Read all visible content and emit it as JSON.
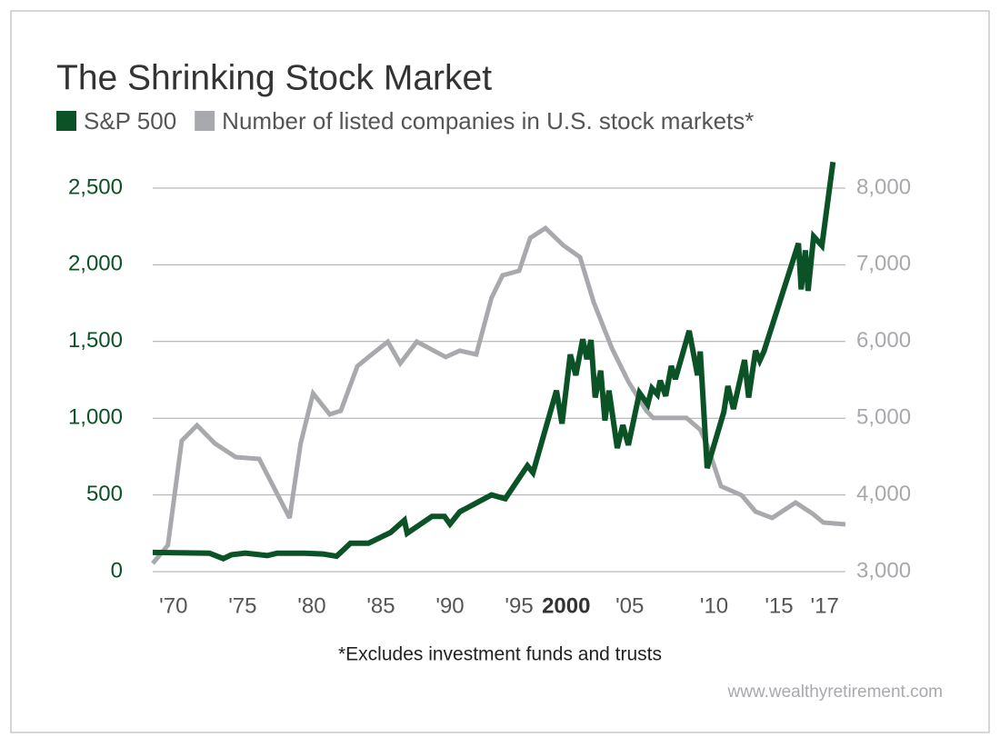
{
  "chart_data": {
    "type": "line",
    "title": "The Shrinking Stock Market",
    "footnote": "*Excludes investment funds and trusts",
    "source": "www.wealthyretirement.com",
    "xlim": [
      1968.5,
      2018.6
    ],
    "xticks": [
      {
        "value": 1970,
        "label": "'70"
      },
      {
        "value": 1975,
        "label": "'75"
      },
      {
        "value": 1980,
        "label": "'80"
      },
      {
        "value": 1985,
        "label": "'85"
      },
      {
        "value": 1990,
        "label": "'90"
      },
      {
        "value": 1995,
        "label": "'95"
      },
      {
        "value": 1998.4,
        "label": "2000"
      },
      {
        "value": 2003,
        "label": "'05"
      },
      {
        "value": 2009.1,
        "label": "'10"
      },
      {
        "value": 2013.8,
        "label": "'15"
      },
      {
        "value": 2017.1,
        "label": "'17"
      }
    ],
    "ylim": [
      0,
      2500
    ],
    "yticks": [
      0,
      500,
      {
        "value": 1000,
        "label": "1,000"
      },
      {
        "value": 1500,
        "label": "1,500"
      },
      {
        "value": 2000,
        "label": "2,000"
      },
      {
        "value": 2500,
        "label": "2,500"
      }
    ],
    "y2lim": [
      3000,
      8000
    ],
    "y2ticks": [
      {
        "value": 3000,
        "label": "3,000"
      },
      {
        "value": 4000,
        "label": "4,000"
      },
      {
        "value": 5000,
        "label": "5,000"
      },
      {
        "value": 6000,
        "label": "6,000"
      },
      {
        "value": 7000,
        "label": "7,000"
      },
      {
        "value": 8000,
        "label": "8,000"
      }
    ],
    "grid": true,
    "series": [
      {
        "name": "S&P 500",
        "color": "#0b5226",
        "axis": "y",
        "x": [
          1968.5,
          1972.6,
          1973.6,
          1974.2,
          1975.2,
          1976.8,
          1977.5,
          1979.5,
          1980.8,
          1981.8,
          1982.8,
          1984.1,
          1985.7,
          1986.7,
          1986.9,
          1988.7,
          1989.6,
          1990,
          1990.7,
          1993,
          1994,
          1995.6,
          1996,
          1997.7,
          1998.1,
          1998.7,
          1999.1,
          1999.6,
          1999.9,
          2000.2,
          2000.5,
          2000.9,
          2001.2,
          2001.5,
          2002.1,
          2002.5,
          2002.9,
          2003.7,
          2004.3,
          2004.6,
          2005,
          2005.2,
          2005.6,
          2006,
          2006.3,
          2007.3,
          2007.9,
          2008.1,
          2008.6,
          2009.8,
          2010.1,
          2010.5,
          2011.3,
          2011.6,
          2012.1,
          2012.4,
          2012.7,
          2015.2,
          2015.4,
          2015.7,
          2015.9,
          2016.3,
          2016.9,
          2017.7
        ],
        "values": [
          125,
          120,
          85,
          110,
          120,
          105,
          120,
          120,
          115,
          100,
          185,
          185,
          255,
          335,
          250,
          360,
          360,
          310,
          390,
          500,
          475,
          690,
          645,
          1180,
          965,
          1415,
          1280,
          1515,
          1385,
          1510,
          1135,
          1310,
          985,
          1180,
          805,
          955,
          825,
          1165,
          1090,
          1195,
          1155,
          1245,
          1145,
          1340,
          1255,
          1570,
          1280,
          1435,
          675,
          1040,
          1210,
          1060,
          1380,
          1135,
          1440,
          1375,
          1435,
          2140,
          1840,
          2095,
          1830,
          2185,
          2125,
          2670
        ]
      },
      {
        "name": "Number of listed companies in U.S. stock markets*",
        "color": "#a8a9ad",
        "axis": "y2",
        "x": [
          1968.5,
          1969.6,
          1970.6,
          1971.7,
          1973,
          1974.5,
          1976.2,
          1978.4,
          1979.2,
          1980.1,
          1981.3,
          1982.1,
          1983.3,
          1984.1,
          1985.5,
          1986.4,
          1987.6,
          1989.7,
          1990.7,
          1991.9,
          1993,
          1993.8,
          1995,
          1995.8,
          1996.9,
          1998.2,
          1999.4,
          2000.4,
          2001.7,
          2002.9,
          2004.2,
          2004.7,
          2007.1,
          2008.1,
          2008.6,
          2009.6,
          2011.1,
          2012.1,
          2013.3,
          2015,
          2016.2,
          2017,
          2018.6
        ],
        "values": [
          3107,
          3344,
          4706,
          4908,
          4671,
          4493,
          4469,
          3699,
          4671,
          5323,
          5050,
          5097,
          5678,
          5797,
          5998,
          5714,
          5998,
          5797,
          5880,
          5832,
          6567,
          6863,
          6922,
          7349,
          7479,
          7254,
          7100,
          6508,
          5915,
          5477,
          5097,
          5003,
          5003,
          4849,
          4647,
          4114,
          3995,
          3782,
          3699,
          3900,
          3758,
          3640,
          3616
        ]
      }
    ]
  }
}
